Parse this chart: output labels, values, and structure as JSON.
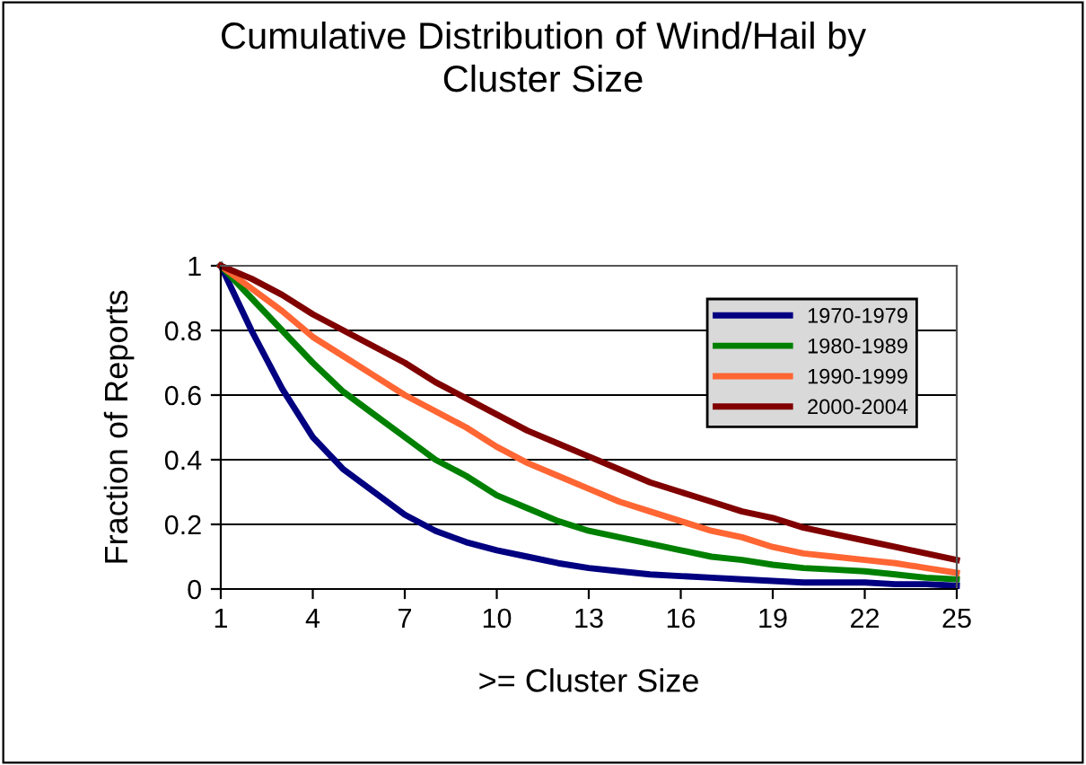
{
  "chart_data": {
    "type": "line",
    "title": "Cumulative Distribution of Wind/Hail by\nCluster Size",
    "xlabel": ">= Cluster Size",
    "ylabel": "Fraction of Reports",
    "x": [
      1,
      2,
      3,
      4,
      5,
      6,
      7,
      8,
      9,
      10,
      11,
      12,
      13,
      14,
      15,
      16,
      17,
      18,
      19,
      20,
      21,
      22,
      23,
      24,
      25
    ],
    "series": [
      {
        "name": "1970-1979",
        "color": "#000080",
        "values": [
          1,
          0.8,
          0.62,
          0.47,
          0.37,
          0.3,
          0.23,
          0.18,
          0.145,
          0.12,
          0.1,
          0.08,
          0.065,
          0.055,
          0.045,
          0.04,
          0.035,
          0.03,
          0.025,
          0.02,
          0.02,
          0.02,
          0.015,
          0.015,
          0.01
        ]
      },
      {
        "name": "1980-1989",
        "color": "#008000",
        "values": [
          1,
          0.9,
          0.8,
          0.7,
          0.61,
          0.54,
          0.47,
          0.4,
          0.35,
          0.29,
          0.25,
          0.21,
          0.18,
          0.16,
          0.14,
          0.12,
          0.1,
          0.09,
          0.075,
          0.065,
          0.06,
          0.055,
          0.045,
          0.035,
          0.03
        ]
      },
      {
        "name": "1990-1999",
        "color": "#ff6633",
        "values": [
          1,
          0.93,
          0.86,
          0.78,
          0.72,
          0.66,
          0.6,
          0.55,
          0.5,
          0.44,
          0.39,
          0.35,
          0.31,
          0.27,
          0.24,
          0.21,
          0.18,
          0.16,
          0.13,
          0.11,
          0.1,
          0.09,
          0.08,
          0.065,
          0.05
        ]
      },
      {
        "name": "2000-2004",
        "color": "#800000",
        "values": [
          1,
          0.96,
          0.91,
          0.85,
          0.8,
          0.75,
          0.7,
          0.64,
          0.59,
          0.54,
          0.49,
          0.45,
          0.41,
          0.37,
          0.33,
          0.3,
          0.27,
          0.24,
          0.22,
          0.19,
          0.17,
          0.15,
          0.13,
          0.11,
          0.09
        ]
      }
    ],
    "xlim": [
      1,
      25
    ],
    "xticks": [
      1,
      4,
      7,
      10,
      13,
      16,
      19,
      22,
      25
    ],
    "ylim": [
      0,
      1
    ],
    "yticks": [
      0,
      0.2,
      0.4,
      0.6,
      0.8,
      1
    ],
    "grid": "y",
    "legend": "top right",
    "marker": "none",
    "line_style": "solid"
  }
}
